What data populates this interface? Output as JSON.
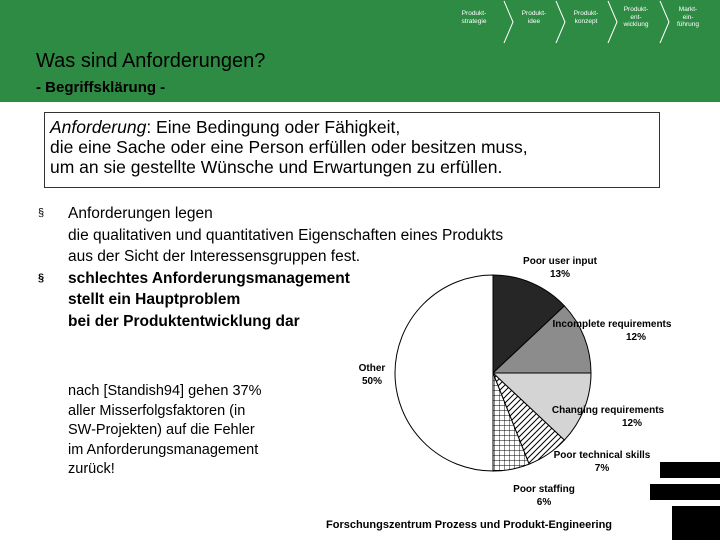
{
  "nav": {
    "items": [
      {
        "lines": [
          "Produkt-",
          "strategie"
        ]
      },
      {
        "lines": [
          "Produkt-",
          "idee"
        ]
      },
      {
        "lines": [
          "Produkt-",
          "konzept"
        ]
      },
      {
        "lines": [
          "Produkt-",
          "ent-",
          "wicklung"
        ]
      },
      {
        "lines": [
          "Markt-",
          "ein-",
          "führung"
        ]
      }
    ]
  },
  "header": {
    "title": "Was sind Anforderungen?",
    "subtitle": "- Begriffsklärung -"
  },
  "definition": {
    "term": "Anforderung",
    "lines": [
      ":  Eine Bedingung oder Fähigkeit,",
      "die eine Sache oder eine Person erfüllen oder besitzen muss,",
      "um an sie gestellte Wünsche und Erwartungen zu erfüllen."
    ]
  },
  "bullets": [
    {
      "marker": "§",
      "lines": [
        "Anforderungen legen",
        "die qualitativen und quantitativen Eigenschaften eines Produkts",
        "aus der Sicht der Interessensgruppen fest."
      ]
    },
    {
      "marker": "§",
      "lines": [
        "schlechtes Anforderungsmanagement",
        "stellt ein Hauptproblem",
        "bei der Produktentwicklung dar"
      ]
    }
  ],
  "note": {
    "lines": [
      "nach [Standish94] gehen 37%",
      "aller Misserfolgsfaktoren (in",
      "SW-Projekten) auf die Fehler",
      "im Anforderungsmanagement",
      "zurück!"
    ]
  },
  "chart_data": {
    "type": "pie",
    "title": "",
    "slices": [
      {
        "label": "Poor user input",
        "value": 13,
        "value_label": "13%",
        "color": "#262626",
        "pattern": "solid"
      },
      {
        "label": "Incomplete requirements",
        "value": 12,
        "value_label": "12%",
        "color": "#8c8c8c",
        "pattern": "solid"
      },
      {
        "label": "Changing requirements",
        "value": 12,
        "value_label": "12%",
        "color": "#d4d4d4",
        "pattern": "solid"
      },
      {
        "label": "Poor technical skills",
        "value": 7,
        "value_label": "7%",
        "color": "#ffffff",
        "pattern": "diagonal"
      },
      {
        "label": "Poor staffing",
        "value": 6,
        "value_label": "6%",
        "color": "#ffffff",
        "pattern": "grid"
      },
      {
        "label": "Other",
        "value": 50,
        "value_label": "50%",
        "color": "#ffffff",
        "pattern": "solid"
      }
    ]
  },
  "footer": {
    "text": "Forschungszentrum Prozess und Produkt-Engineering"
  },
  "colors": {
    "header_green": "#2e8b43",
    "text": "#000000"
  }
}
